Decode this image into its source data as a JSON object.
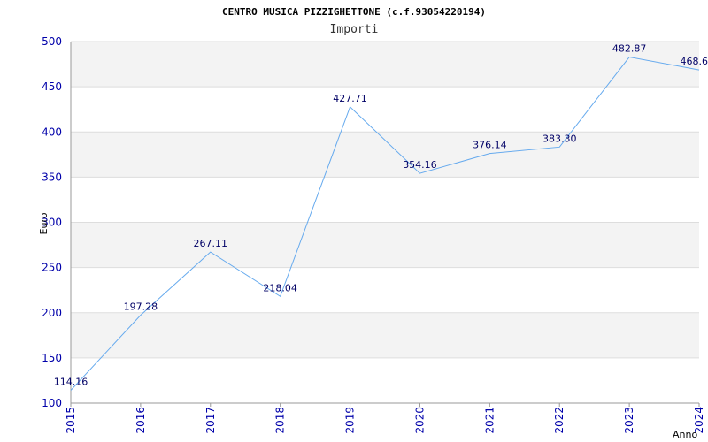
{
  "chart_data": {
    "type": "line",
    "title": "CENTRO MUSICA PIZZIGHETTONE (c.f.93054220194)",
    "subtitle": "Importi",
    "xlabel": "Anno",
    "ylabel": "Euro",
    "categories": [
      "2015",
      "2016",
      "2017",
      "2018",
      "2019",
      "2020",
      "2021",
      "2022",
      "2023",
      "2024"
    ],
    "series": [
      {
        "name": "Importi",
        "values": [
          114.16,
          197.28,
          267.11,
          218.04,
          427.71,
          354.16,
          376.14,
          383.3,
          482.87,
          468.6
        ],
        "labels": [
          "114.16",
          "197.28",
          "267.11",
          "218.04",
          "427.71",
          "354.16",
          "376.14",
          "383.30",
          "482.87",
          "468.6"
        ]
      }
    ],
    "ylim": [
      100,
      500
    ],
    "yticks": [
      100,
      150,
      200,
      250,
      300,
      350,
      400,
      450,
      500
    ],
    "grid": true,
    "colors": {
      "line": "#66aaee",
      "band_alt": "#f3f3f3",
      "band": "#ffffff",
      "gridline": "#dddddd",
      "axis": "#999999"
    }
  }
}
